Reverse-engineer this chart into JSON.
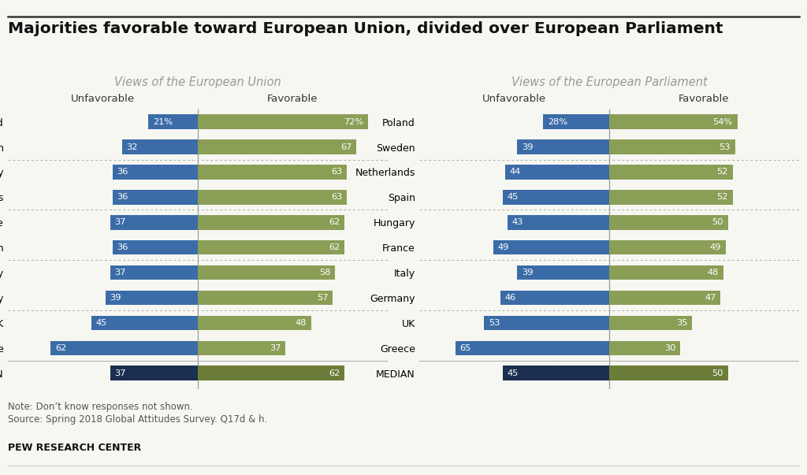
{
  "title": "Majorities favorable toward European Union, divided over European Parliament",
  "title_fontsize": 14.5,
  "subtitle_eu": "Views of the European Union",
  "subtitle_ep": "Views of the European Parliament",
  "background_color": "#f7f7f2",
  "eu_categories": [
    "Poland",
    "Spain",
    "Germany",
    "Netherlands",
    "France",
    "Sweden",
    "Italy",
    "Hungary",
    "UK",
    "Greece",
    "MEDIAN"
  ],
  "eu_unfavorable": [
    21,
    32,
    36,
    36,
    37,
    36,
    37,
    39,
    45,
    62,
    37
  ],
  "eu_favorable": [
    72,
    67,
    63,
    63,
    62,
    62,
    58,
    57,
    48,
    37,
    62
  ],
  "ep_categories": [
    "Poland",
    "Sweden",
    "Netherlands",
    "Spain",
    "Hungary",
    "France",
    "Italy",
    "Germany",
    "UK",
    "Greece",
    "MEDIAN"
  ],
  "ep_unfavorable": [
    28,
    39,
    44,
    45,
    43,
    49,
    39,
    46,
    53,
    65,
    45
  ],
  "ep_favorable": [
    54,
    53,
    52,
    52,
    50,
    49,
    48,
    47,
    35,
    30,
    50
  ],
  "color_unfavorable": "#3b6ca8",
  "color_favorable": "#8a9e56",
  "color_median_unfav": "#1b3050",
  "color_median_fav": "#6b7d38",
  "bar_height": 0.58,
  "note_line1": "Note: Don’t know responses not shown.",
  "note_line2": "Source: Spring 2018 Global Attitudes Survey. Q17d & h.",
  "footer_text": "PEW RESEARCH CENTER",
  "xlim": 80
}
